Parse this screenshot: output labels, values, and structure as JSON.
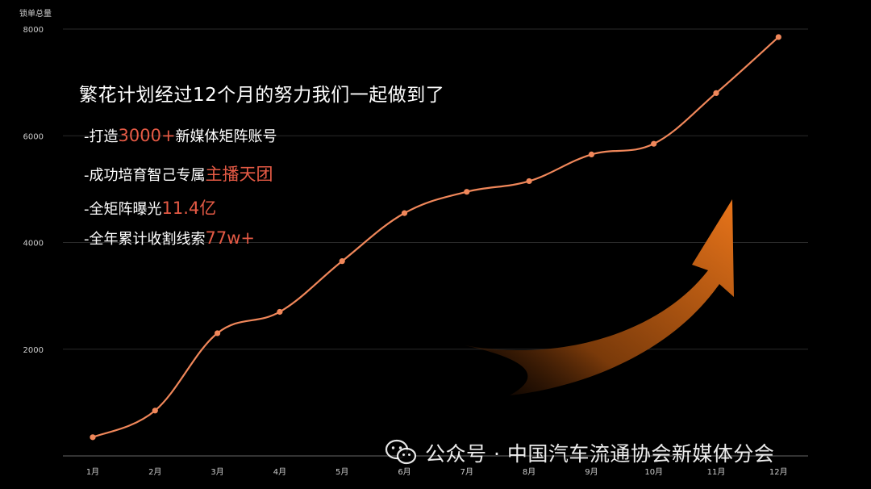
{
  "chart_data": {
    "type": "line",
    "ylabel": "锁单总量",
    "yticks": [
      2000,
      4000,
      6000,
      8000
    ],
    "ylim": [
      0,
      8000
    ],
    "categories": [
      "1月",
      "2月",
      "3月",
      "4月",
      "5月",
      "6月",
      "7月",
      "8月",
      "9月",
      "10月",
      "11月",
      "12月"
    ],
    "series": [
      {
        "values": [
          350,
          850,
          2300,
          2700,
          3650,
          4550,
          4950,
          5150,
          5650,
          5850,
          6800,
          7850
        ]
      }
    ],
    "grid": true,
    "legend": "none"
  },
  "headline": "繁花计划经过12个月的努力我们一起做到了",
  "bullets": [
    {
      "prefix": "-打造",
      "highlight": "3000+",
      "suffix": "新媒体矩阵账号"
    },
    {
      "prefix": "-成功培育智己专属",
      "highlight": "主播天团",
      "suffix": ""
    },
    {
      "prefix": "-全矩阵曝光",
      "highlight": "11.4亿",
      "suffix": ""
    },
    {
      "prefix": "-全年累计收割线索",
      "highlight": "77w+",
      "suffix": ""
    }
  ],
  "watermark": {
    "text": "公众号 · 中国汽车流通协会新媒体分会",
    "icon": "wechat-icon"
  },
  "colors": {
    "line": "#f0875a",
    "highlight": "#e55a45",
    "arrow_light": "#e8741a",
    "arrow_dark": "#2a1205",
    "grid": "#2a2a2a",
    "axis_text": "#cccccc"
  }
}
